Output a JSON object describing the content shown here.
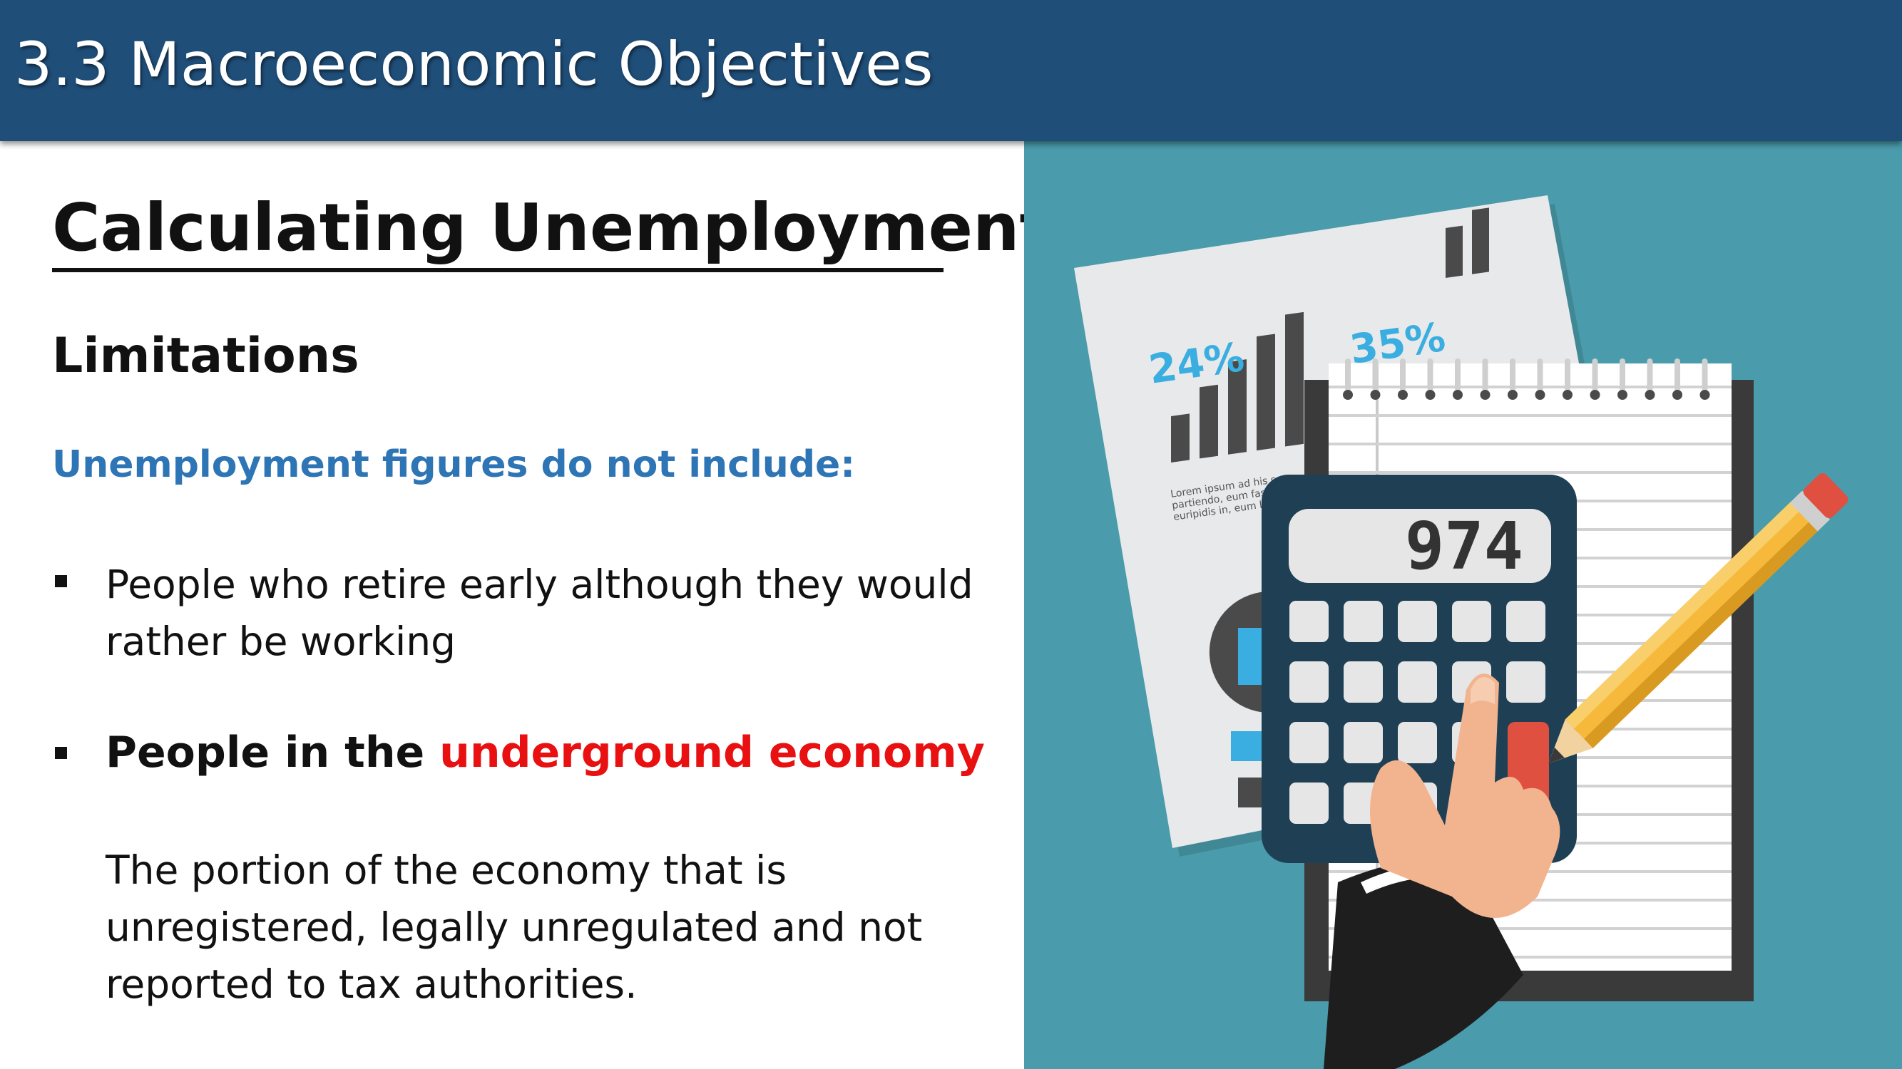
{
  "header": {
    "title": "3.3 Macroeconomic Objectives"
  },
  "slide": {
    "title": "Calculating Unemployment",
    "subheading": "Limitations",
    "intro": "Unemployment figures do not include:",
    "bullets": [
      {
        "text": "People who retire early although they would rather be working"
      },
      {
        "prefix": "People in the ",
        "highlight": "underground economy"
      }
    ],
    "description": "The portion of the economy that is unregistered, legally unregulated and not reported to tax authorities."
  },
  "illustration": {
    "report_pct_1": "24%",
    "report_pct_2": "35%",
    "report_text": [
      "Lorem ipsum ad his s",
      "partiendo, eum fas",
      "euripidis in, eum lib"
    ],
    "calculator_display": "974",
    "colors": {
      "header": "#1f4e79",
      "accent_blue": "#2e75b6",
      "highlight_red": "#e81010",
      "teal_background": "#4a9bab",
      "calculator": "#1e3f54",
      "pct_blue": "#3aaee0",
      "pencil": "#f6b93b"
    }
  }
}
